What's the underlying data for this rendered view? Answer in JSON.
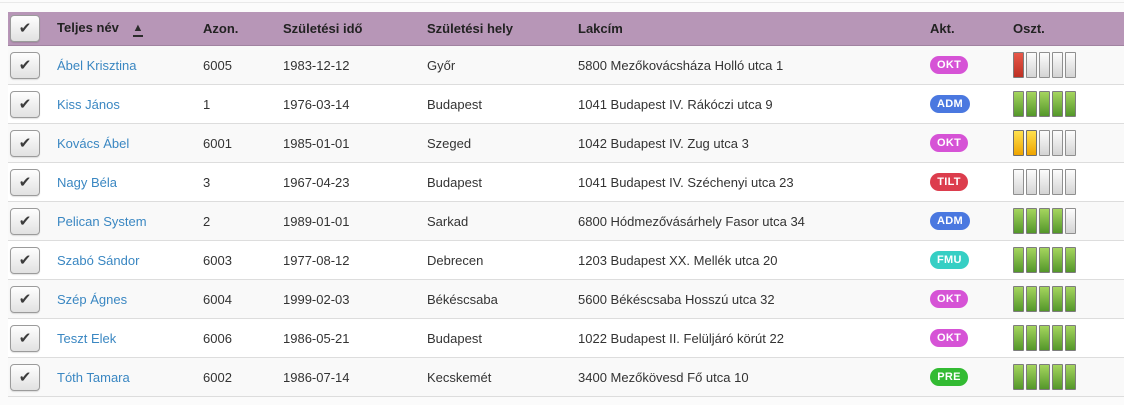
{
  "icons": {
    "checkbox_check": "✔",
    "sort_asc": "▲"
  },
  "theme": {
    "header_bg": "#b796b7",
    "link_color": "#3a87c2",
    "row_alt_bg": "#f9f9f9"
  },
  "badge_colors": {
    "OKT": "#d653d6",
    "ADM": "#4a78e0",
    "TILT": "#dc3d4d",
    "FMU": "#36cfc4",
    "PRE": "#33bb33"
  },
  "bar_colors": {
    "green": "#67ab34",
    "red": "#d64535",
    "yellow": "#f7c331",
    "empty": "#e9e9e9"
  },
  "table": {
    "select_all_checked": true,
    "columns": [
      {
        "label": "Teljes név",
        "sorted": "asc"
      },
      {
        "label": "Azon."
      },
      {
        "label": "Születési idő"
      },
      {
        "label": "Születési hely"
      },
      {
        "label": "Lakcím"
      },
      {
        "label": "Akt."
      },
      {
        "label": "Oszt."
      }
    ],
    "rows": [
      {
        "checked": true,
        "name": "Ábel Krisztina",
        "id": "6005",
        "birth_date": "1983-12-12",
        "birth_place": "Győr",
        "address": "5800 Mezőkovácsháza Holló utca 1",
        "badge": "OKT",
        "bars": [
          "red",
          "empty",
          "empty",
          "empty",
          "empty"
        ]
      },
      {
        "checked": true,
        "name": "Kiss János",
        "id": "1",
        "birth_date": "1976-03-14",
        "birth_place": "Budapest",
        "address": "1041 Budapest IV. Rákóczi utca 9",
        "badge": "ADM",
        "bars": [
          "green",
          "green",
          "green",
          "green",
          "green"
        ]
      },
      {
        "checked": true,
        "name": "Kovács Ábel",
        "id": "6001",
        "birth_date": "1985-01-01",
        "birth_place": "Szeged",
        "address": "1042 Budapest IV. Zug utca 3",
        "badge": "OKT",
        "bars": [
          "yellow",
          "yellow",
          "empty",
          "empty",
          "empty"
        ]
      },
      {
        "checked": true,
        "name": "Nagy Béla",
        "id": "3",
        "birth_date": "1967-04-23",
        "birth_place": "Budapest",
        "address": "1041 Budapest IV. Széchenyi utca 23",
        "badge": "TILT",
        "bars": [
          "empty",
          "empty",
          "empty",
          "empty",
          "empty"
        ]
      },
      {
        "checked": true,
        "name": "Pelican System",
        "id": "2",
        "birth_date": "1989-01-01",
        "birth_place": "Sarkad",
        "address": "6800 Hódmezővásárhely Fasor utca 34",
        "badge": "ADM",
        "bars": [
          "green",
          "green",
          "green",
          "green",
          "empty"
        ]
      },
      {
        "checked": true,
        "name": "Szabó Sándor",
        "id": "6003",
        "birth_date": "1977-08-12",
        "birth_place": "Debrecen",
        "address": "1203 Budapest XX. Mellék utca 20",
        "badge": "FMU",
        "bars": [
          "green",
          "green",
          "green",
          "green",
          "green"
        ]
      },
      {
        "checked": true,
        "name": "Szép Ágnes",
        "id": "6004",
        "birth_date": "1999-02-03",
        "birth_place": "Békéscsaba",
        "address": "5600 Békéscsaba Hosszú utca 32",
        "badge": "OKT",
        "bars": [
          "green",
          "green",
          "green",
          "green",
          "green"
        ]
      },
      {
        "checked": true,
        "name": "Teszt Elek",
        "id": "6006",
        "birth_date": "1986-05-21",
        "birth_place": "Budapest",
        "address": "1022 Budapest II. Felüljáró körút 22",
        "badge": "OKT",
        "bars": [
          "green",
          "green",
          "green",
          "green",
          "green"
        ]
      },
      {
        "checked": true,
        "name": "Tóth Tamara",
        "id": "6002",
        "birth_date": "1986-07-14",
        "birth_place": "Kecskemét",
        "address": "3400 Mezőkövesd Fő utca 10",
        "badge": "PRE",
        "bars": [
          "green",
          "green",
          "green",
          "green",
          "green"
        ]
      }
    ]
  }
}
